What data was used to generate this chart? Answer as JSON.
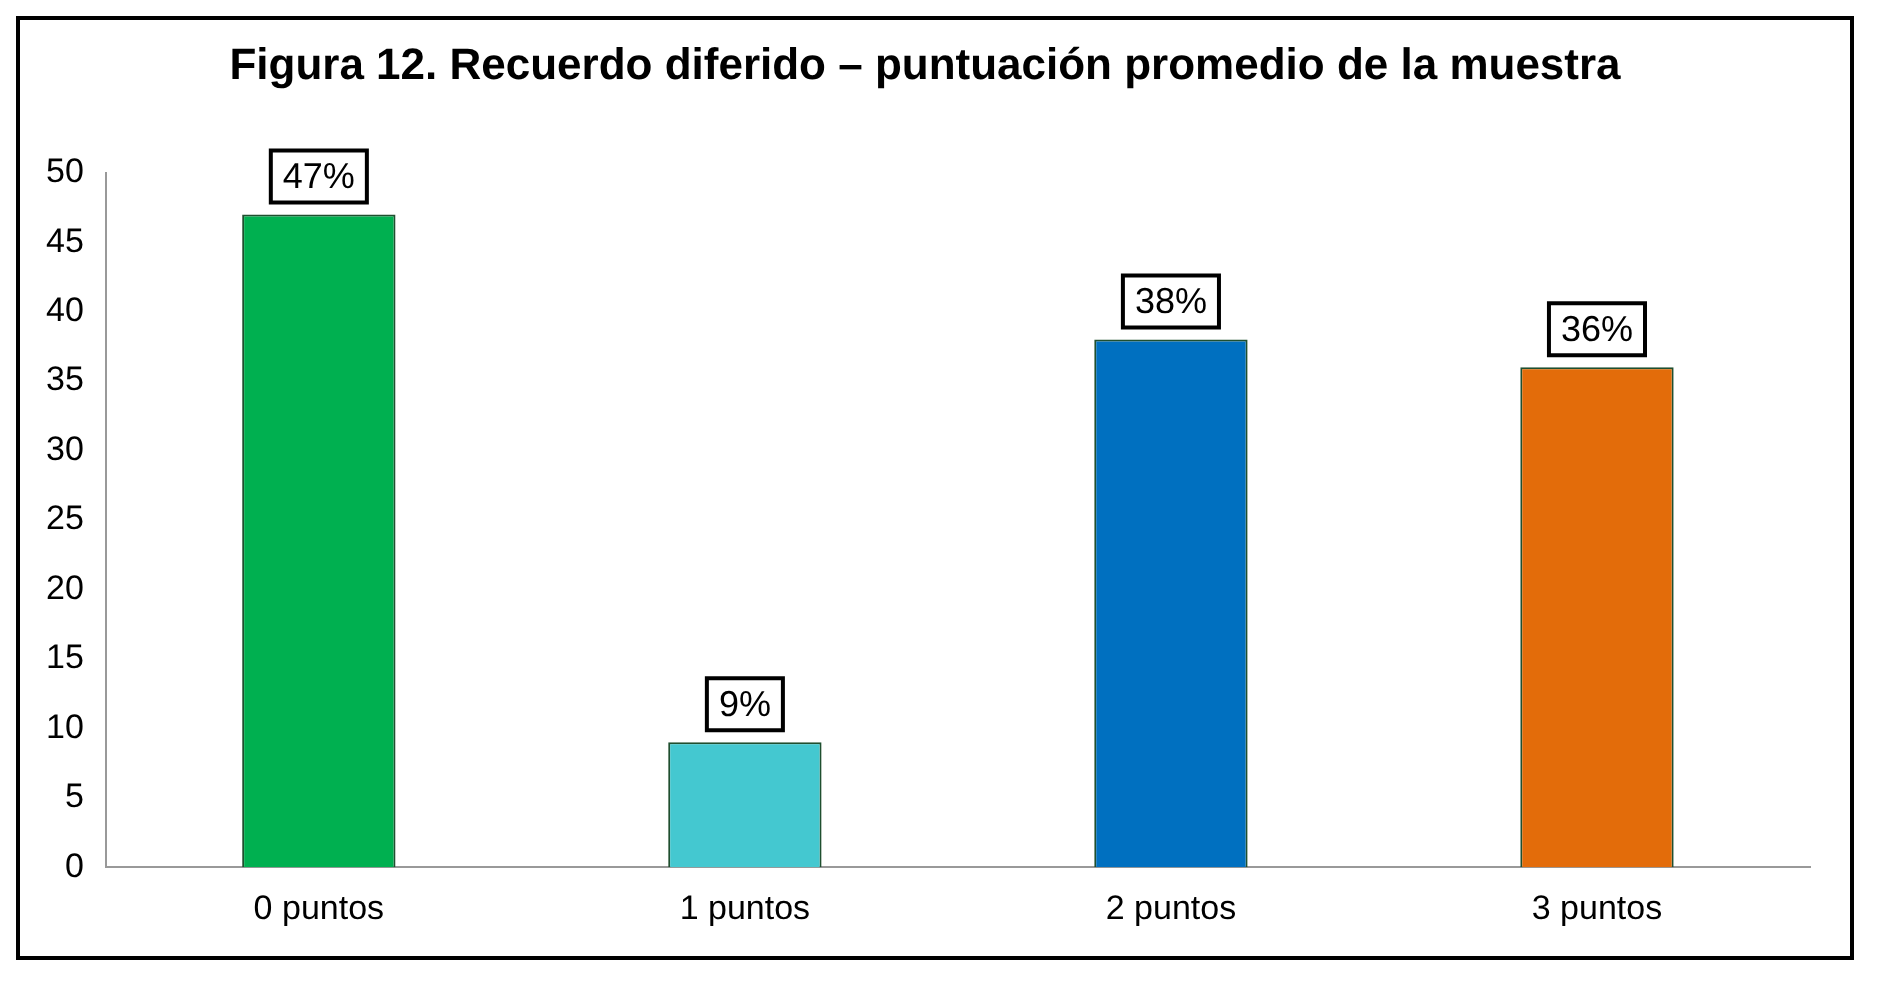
{
  "chart_data": {
    "type": "bar",
    "title": "Figura 12. Recuerdo diferido – puntuación promedio de la muestra",
    "categories": [
      "0 puntos",
      "1 puntos",
      "2 puntos",
      "3 puntos"
    ],
    "values": [
      47,
      9,
      38,
      36
    ],
    "colors": [
      "#00b050",
      "#44c8d0",
      "#0070c0",
      "#e36c0a"
    ],
    "value_labels": [
      "47%",
      "9%",
      "38%",
      "36%"
    ],
    "ylim": [
      0,
      50
    ],
    "yticks": [
      0,
      5,
      10,
      15,
      20,
      25,
      30,
      35,
      40,
      45,
      50
    ],
    "grid": false,
    "legend": false
  }
}
